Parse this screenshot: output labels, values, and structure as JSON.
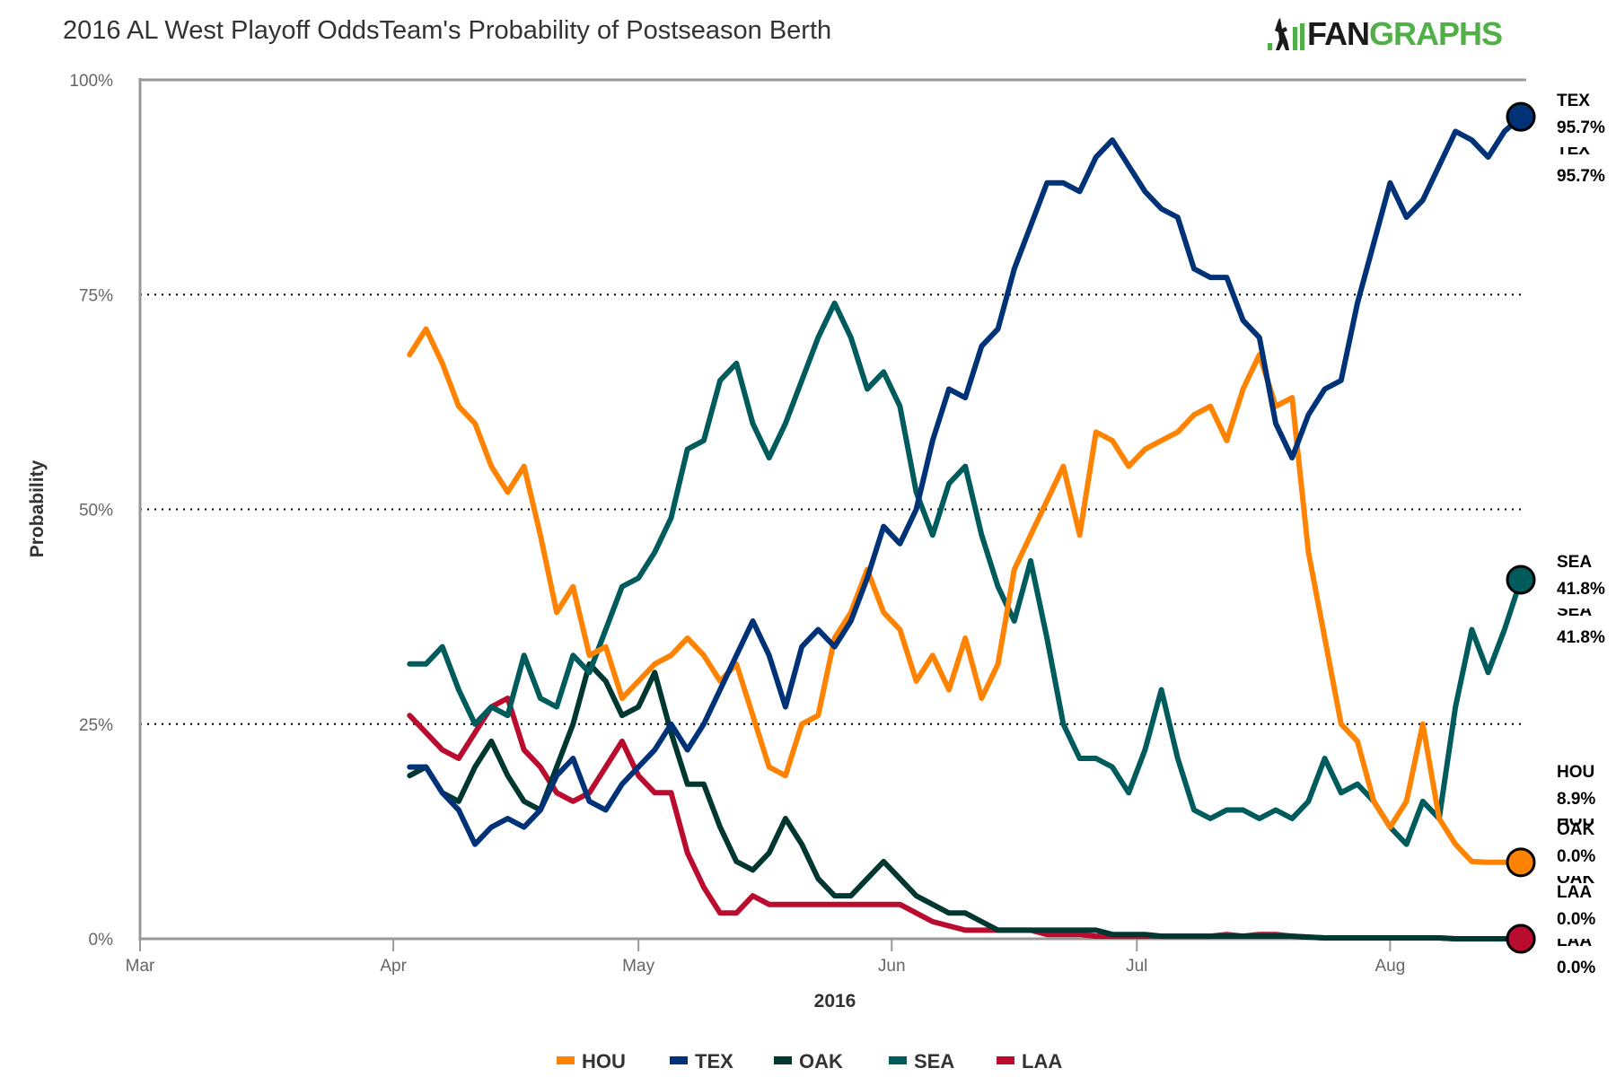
{
  "page": {
    "title": "2016 AL West Playoff OddsTeam's Probability of Postseason Berth",
    "logo": {
      "part1": "FAN",
      "part2": "GRAPHS",
      "colors": {
        "fan": "#1a1a1a",
        "graphs": "#50b047"
      }
    }
  },
  "chart_data": {
    "type": "line",
    "title": "2016 AL West Playoff OddsTeam's Probability of Postseason Berth",
    "xlabel": "2016",
    "ylabel": "Probability",
    "x_unit": "days since Mar 1, 2016",
    "xlim": [
      0,
      169
    ],
    "ylim": [
      0,
      100
    ],
    "x_ticks": [
      {
        "label": "Mar",
        "day": 0
      },
      {
        "label": "Apr",
        "day": 31
      },
      {
        "label": "May",
        "day": 61
      },
      {
        "label": "Jun",
        "day": 92
      },
      {
        "label": "Jul",
        "day": 122
      },
      {
        "label": "Aug",
        "day": 153
      }
    ],
    "y_ticks": [
      {
        "label": "0%",
        "value": 0
      },
      {
        "label": "25%",
        "value": 25
      },
      {
        "label": "50%",
        "value": 50
      },
      {
        "label": "75%",
        "value": 75
      },
      {
        "label": "100%",
        "value": 100
      }
    ],
    "grid": "horizontal-dotted",
    "legend_position": "bottom",
    "x": [
      33,
      35,
      37,
      39,
      41,
      43,
      45,
      47,
      49,
      51,
      53,
      55,
      57,
      59,
      61,
      63,
      65,
      67,
      69,
      71,
      73,
      75,
      77,
      79,
      81,
      83,
      85,
      87,
      89,
      91,
      93,
      95,
      97,
      99,
      101,
      103,
      105,
      107,
      109,
      111,
      113,
      115,
      117,
      119,
      121,
      123,
      125,
      127,
      129,
      131,
      133,
      135,
      137,
      139,
      141,
      143,
      145,
      147,
      149,
      151,
      153,
      155,
      157,
      159,
      161,
      163,
      165,
      167,
      169
    ],
    "series": [
      {
        "name": "HOU",
        "color": "#ff8200",
        "end_value": 8.9,
        "end_label": "8.9%",
        "values": [
          68,
          71,
          67,
          62,
          60,
          55,
          52,
          55,
          47,
          38,
          41,
          33,
          34,
          28,
          30,
          32,
          33,
          35,
          33,
          30,
          32,
          26,
          20,
          19,
          25,
          26,
          35,
          38,
          43,
          38,
          36,
          30,
          33,
          29,
          35,
          28,
          32,
          43,
          47,
          51,
          55,
          47,
          59,
          58,
          55,
          57,
          58,
          59,
          61,
          62,
          58,
          64,
          68,
          62,
          63,
          45,
          35,
          25,
          23,
          16,
          13,
          16,
          25,
          14,
          11,
          9,
          8.9,
          8.9,
          8.9
        ]
      },
      {
        "name": "TEX",
        "color": "#003278",
        "end_value": 95.7,
        "end_label": "95.7%",
        "values": [
          20,
          20,
          17,
          15,
          11,
          13,
          14,
          13,
          15,
          19,
          21,
          16,
          15,
          18,
          20,
          22,
          25,
          22,
          25,
          29,
          33,
          37,
          33,
          27,
          34,
          36,
          34,
          37,
          42,
          48,
          46,
          50,
          58,
          64,
          63,
          69,
          71,
          78,
          83,
          88,
          88,
          87,
          91,
          93,
          90,
          87,
          85,
          84,
          78,
          77,
          77,
          72,
          70,
          60,
          56,
          61,
          64,
          65,
          74,
          81,
          88,
          84,
          86,
          90,
          94,
          93,
          91,
          94,
          95.7
        ]
      },
      {
        "name": "OAK",
        "color": "#003831",
        "end_value": 0.0,
        "end_label": "0.0%",
        "values": [
          19,
          20,
          17,
          16,
          20,
          23,
          19,
          16,
          15,
          20,
          25,
          32,
          30,
          26,
          27,
          31,
          24,
          18,
          18,
          13,
          9,
          8,
          10,
          14,
          11,
          7,
          5,
          5,
          7,
          9,
          7,
          5,
          4,
          3,
          3,
          2,
          1,
          1,
          1,
          1,
          1,
          1,
          1,
          0.5,
          0.5,
          0.5,
          0.3,
          0.3,
          0.3,
          0.3,
          0.3,
          0.3,
          0.3,
          0.3,
          0.3,
          0.2,
          0.1,
          0.1,
          0.1,
          0.1,
          0.1,
          0.1,
          0.1,
          0.1,
          0,
          0,
          0,
          0,
          0
        ]
      },
      {
        "name": "SEA",
        "color": "#005c5c",
        "end_value": 41.8,
        "end_label": "41.8%",
        "values": [
          32,
          32,
          34,
          29,
          25,
          27,
          26,
          33,
          28,
          27,
          33,
          31,
          36,
          41,
          42,
          45,
          49,
          57,
          58,
          65,
          67,
          60,
          56,
          60,
          65,
          70,
          74,
          70,
          64,
          66,
          62,
          52,
          47,
          53,
          55,
          47,
          41,
          37,
          44,
          35,
          25,
          21,
          21,
          20,
          17,
          22,
          29,
          21,
          15,
          14,
          15,
          15,
          14,
          15,
          14,
          16,
          21,
          17,
          18,
          16,
          13,
          11,
          16,
          14,
          27,
          36,
          31,
          36,
          41.8
        ]
      },
      {
        "name": "LAA",
        "color": "#ba0c2f",
        "end_value": 0.0,
        "end_label": "0.0%",
        "values": [
          26,
          24,
          22,
          21,
          24,
          27,
          28,
          22,
          20,
          17,
          16,
          17,
          20,
          23,
          19,
          17,
          17,
          10,
          6,
          3,
          3,
          5,
          4,
          4,
          4,
          4,
          4,
          4,
          4,
          4,
          4,
          3,
          2,
          1.5,
          1,
          1,
          1,
          1,
          1,
          0.5,
          0.5,
          0.5,
          0.3,
          0.3,
          0.3,
          0.3,
          0.3,
          0.3,
          0.3,
          0.3,
          0.5,
          0.3,
          0.5,
          0.5,
          0.3,
          0.2,
          0.1,
          0.1,
          0.1,
          0.1,
          0.1,
          0.1,
          0.1,
          0.1,
          0,
          0,
          0,
          0,
          0
        ]
      }
    ],
    "end_labels_order": [
      "TEX",
      "SEA",
      "HOU",
      "OAK",
      "LAA"
    ]
  }
}
